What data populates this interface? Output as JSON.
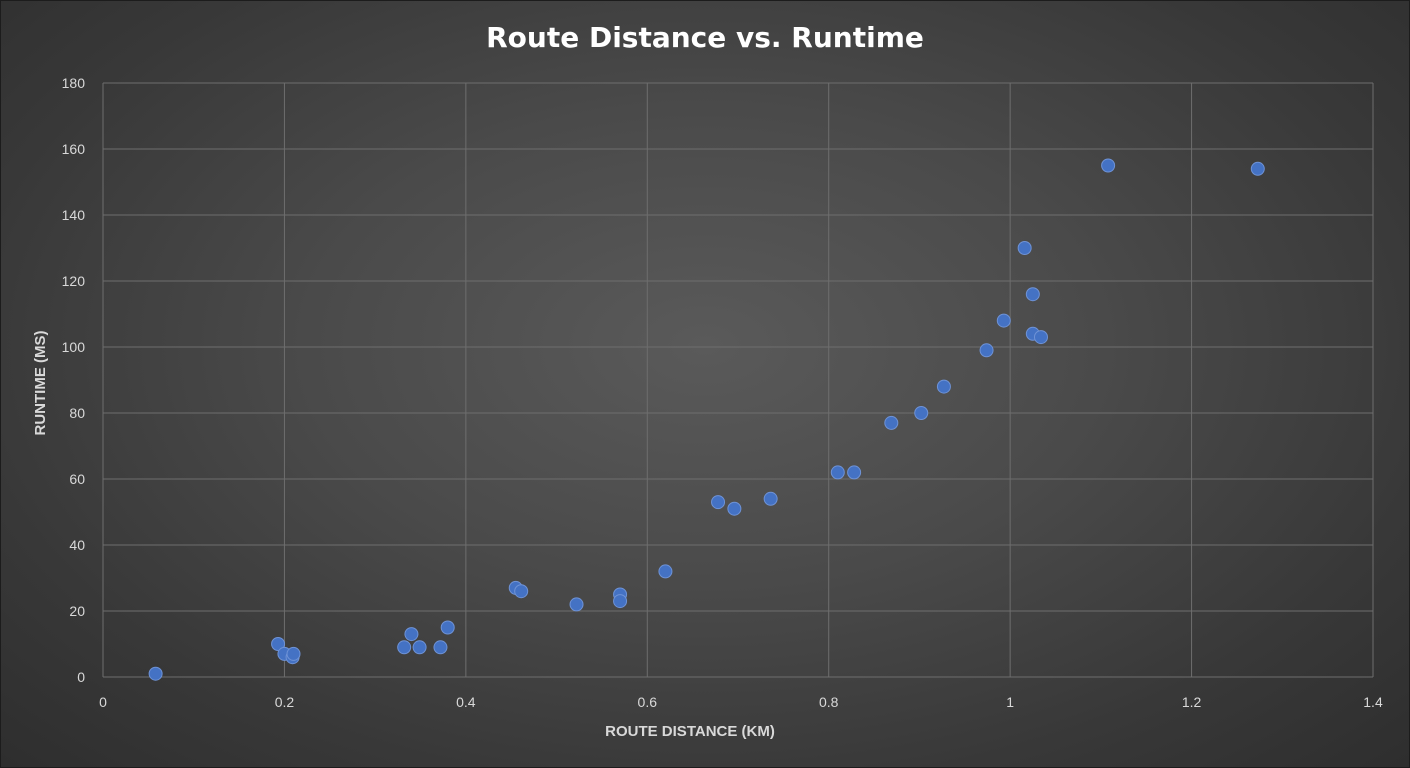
{
  "chart_data": {
    "type": "scatter",
    "title": "Route Distance vs. Runtime",
    "xlabel": "ROUTE DISTANCE (KM)",
    "ylabel": "RUNTIME (MS)",
    "xlim": [
      0,
      1.4
    ],
    "ylim": [
      0,
      180
    ],
    "xticks": [
      0,
      0.2,
      0.4,
      0.6,
      0.8,
      1,
      1.2,
      1.4
    ],
    "xtick_labels": [
      "0",
      "0.2",
      "0.4",
      "0.6",
      "0.8",
      "1",
      "1.2",
      "1.4"
    ],
    "yticks": [
      0,
      20,
      40,
      60,
      80,
      100,
      120,
      140,
      160,
      180
    ],
    "ytick_labels": [
      "0",
      "20",
      "40",
      "60",
      "80",
      "100",
      "120",
      "140",
      "160",
      "180"
    ],
    "grid": true,
    "legend": "none",
    "marker_color": "#4472c4",
    "points": [
      {
        "x": 0.058,
        "y": 1
      },
      {
        "x": 0.193,
        "y": 10
      },
      {
        "x": 0.2,
        "y": 7
      },
      {
        "x": 0.209,
        "y": 6
      },
      {
        "x": 0.21,
        "y": 7
      },
      {
        "x": 0.332,
        "y": 9
      },
      {
        "x": 0.34,
        "y": 13
      },
      {
        "x": 0.349,
        "y": 9
      },
      {
        "x": 0.372,
        "y": 9
      },
      {
        "x": 0.38,
        "y": 15
      },
      {
        "x": 0.455,
        "y": 27
      },
      {
        "x": 0.461,
        "y": 26
      },
      {
        "x": 0.522,
        "y": 22
      },
      {
        "x": 0.57,
        "y": 25
      },
      {
        "x": 0.57,
        "y": 23
      },
      {
        "x": 0.62,
        "y": 32
      },
      {
        "x": 0.678,
        "y": 53
      },
      {
        "x": 0.696,
        "y": 51
      },
      {
        "x": 0.736,
        "y": 54
      },
      {
        "x": 0.81,
        "y": 62
      },
      {
        "x": 0.828,
        "y": 62
      },
      {
        "x": 0.869,
        "y": 77
      },
      {
        "x": 0.902,
        "y": 80
      },
      {
        "x": 0.927,
        "y": 88
      },
      {
        "x": 0.974,
        "y": 99
      },
      {
        "x": 0.993,
        "y": 108
      },
      {
        "x": 1.016,
        "y": 130
      },
      {
        "x": 1.025,
        "y": 116
      },
      {
        "x": 1.025,
        "y": 104
      },
      {
        "x": 1.034,
        "y": 103
      },
      {
        "x": 1.108,
        "y": 155
      },
      {
        "x": 1.273,
        "y": 154
      }
    ]
  }
}
